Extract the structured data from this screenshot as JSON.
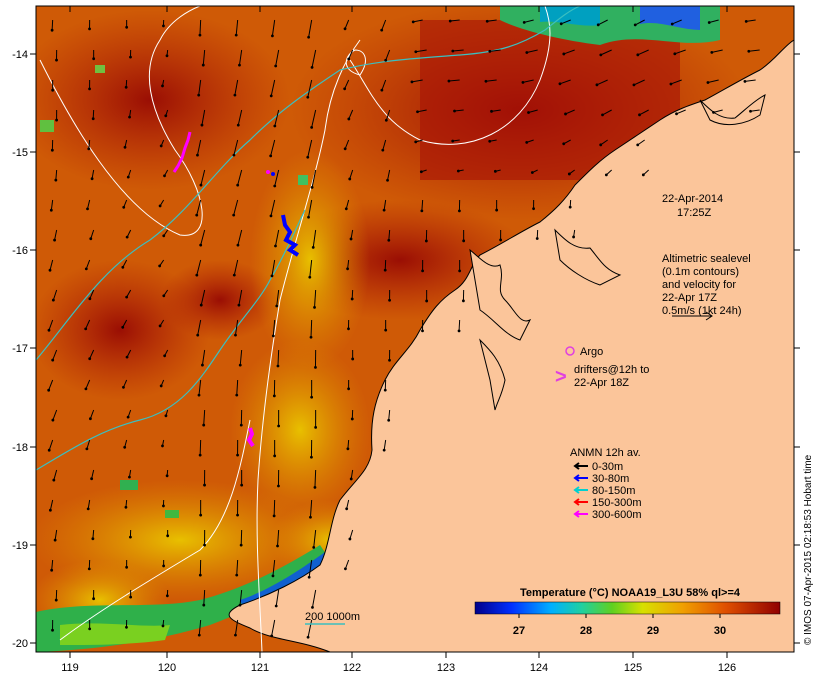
{
  "map": {
    "timestamp": {
      "date": "22-Apr-2014",
      "time": "17:25Z"
    },
    "altimetry_note": [
      "Altimetric sealevel",
      "(0.1m contours)",
      "and velocity for",
      "22-Apr 17Z",
      "0.5m/s (1kt 24h)"
    ],
    "legend_argo": "Argo",
    "legend_drifters": [
      "drifters@12h to",
      "22-Apr 18Z"
    ],
    "anmn": {
      "title": "ANMN 12h av.",
      "items": [
        {
          "label": "0-30m",
          "color": "#000000"
        },
        {
          "label": "30-80m",
          "color": "#0000ff"
        },
        {
          "label": "80-150m",
          "color": "#00d0d0"
        },
        {
          "label": "150-300m",
          "color": "#ff0000"
        },
        {
          "label": "300-600m",
          "color": "#ff00ff"
        }
      ]
    },
    "isobath_label": "200  1000m",
    "colorbar": {
      "title": "Temperature (°C) NOAA19_L3U 58% ql>=4",
      "ticks": [
        "27",
        "28",
        "29",
        "30"
      ]
    },
    "credit": "© IMOS 07-Apr-2015 02:18:53 Hobart time",
    "x_axis": {
      "ticks": [
        "119",
        "120",
        "121",
        "122",
        "123",
        "124",
        "125",
        "126"
      ]
    },
    "y_axis": {
      "ticks": [
        "-14",
        "-15",
        "-16",
        "-17",
        "-18",
        "-19",
        "-20"
      ]
    },
    "colors": {
      "land": "#fbc59a",
      "warm": "#a81608",
      "mid": "#d86a00",
      "cool": "#e3b400",
      "coast_green": "#2fb04a",
      "isobath": "#3bbfc0",
      "argo": "#e040e0"
    }
  }
}
